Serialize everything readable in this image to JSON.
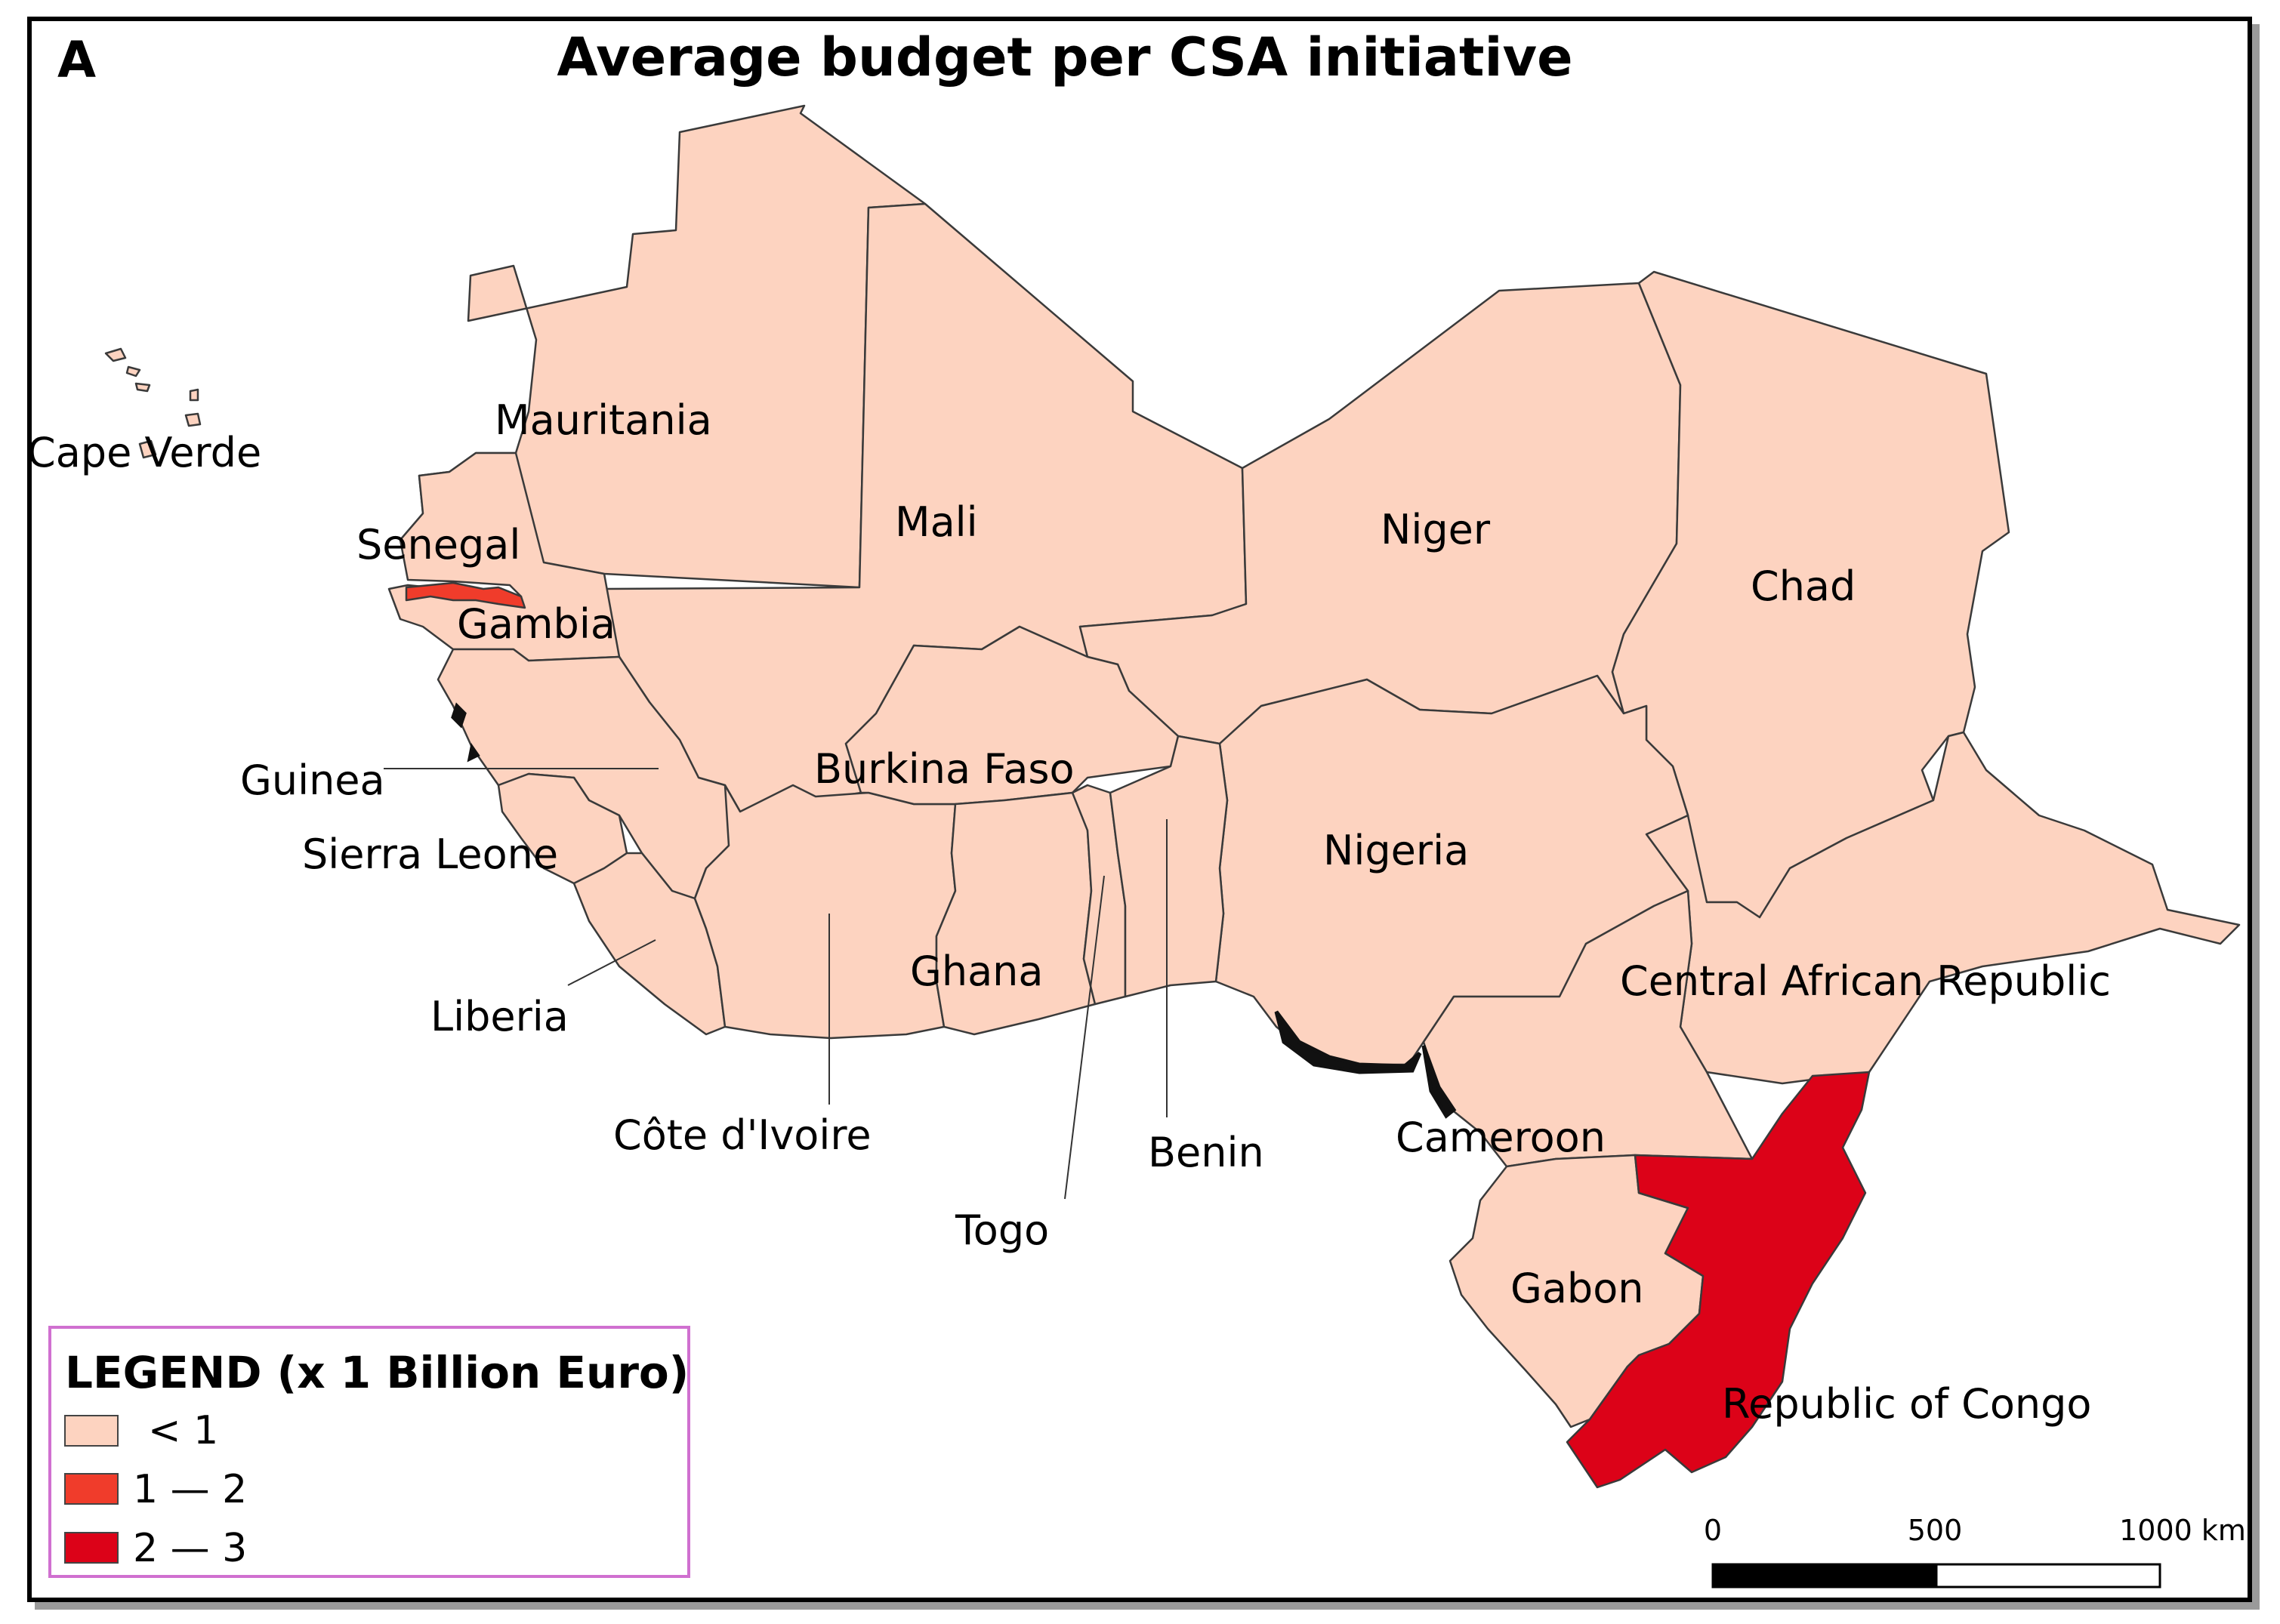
{
  "panel_label": "A",
  "title": "Average budget per CSA initiative",
  "colors": {
    "lt1": "#fdd3c0",
    "from1to2": "#f03c2b",
    "from2to3": "#dc0218",
    "border": "#3a3a3a",
    "legend_border": "#d070d0"
  },
  "legend": {
    "title": "LEGEND (x 1 Billion Euro)",
    "items": [
      {
        "label": "< 1",
        "color": "#fdd3c0"
      },
      {
        "label": "1 — 2",
        "color": "#f03c2b"
      },
      {
        "label": "2 — 3",
        "color": "#dc0218"
      }
    ]
  },
  "scale_bar": {
    "labels": [
      "0",
      "500",
      "1000 km"
    ]
  },
  "countries": [
    {
      "name": "Cape Verde",
      "class": "< 1"
    },
    {
      "name": "Mauritania",
      "class": "< 1"
    },
    {
      "name": "Mali",
      "class": "< 1"
    },
    {
      "name": "Niger",
      "class": "< 1"
    },
    {
      "name": "Chad",
      "class": "< 1"
    },
    {
      "name": "Senegal",
      "class": "< 1"
    },
    {
      "name": "Gambia",
      "class": "1 — 2"
    },
    {
      "name": "Guinea",
      "class": "< 1"
    },
    {
      "name": "Burkina Faso",
      "class": "< 1"
    },
    {
      "name": "Sierra Leone",
      "class": "< 1"
    },
    {
      "name": "Nigeria",
      "class": "< 1"
    },
    {
      "name": "Liberia",
      "class": "< 1"
    },
    {
      "name": "Ghana",
      "class": "< 1"
    },
    {
      "name": "Central African Republic",
      "class": "< 1"
    },
    {
      "name": "Côte d'Ivoire",
      "class": "< 1"
    },
    {
      "name": "Benin",
      "class": "< 1"
    },
    {
      "name": "Cameroon",
      "class": "< 1"
    },
    {
      "name": "Togo",
      "class": "< 1"
    },
    {
      "name": "Gabon",
      "class": "< 1"
    },
    {
      "name": "Republic of Congo",
      "class": "2 — 3"
    }
  ]
}
